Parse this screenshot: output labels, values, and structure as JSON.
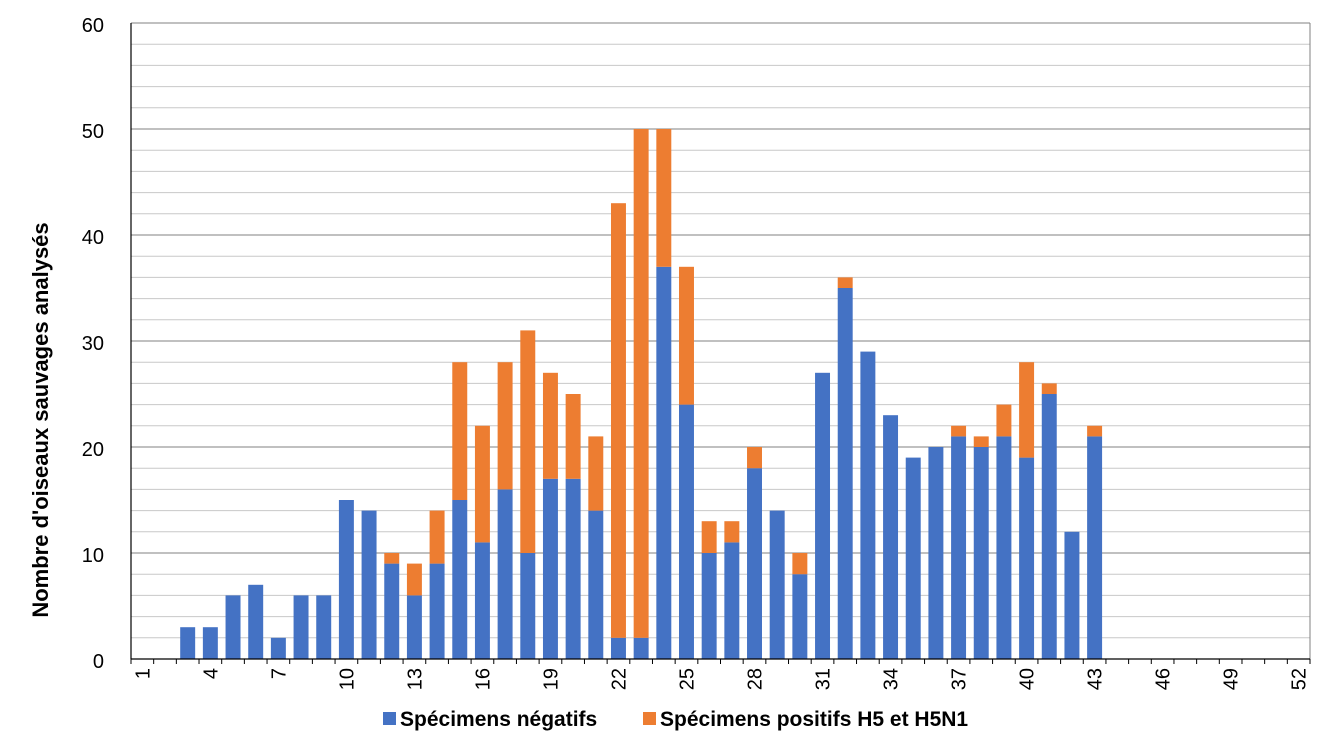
{
  "chart_data": {
    "type": "bar",
    "stacked": true,
    "ylabel": "Nombre d'oiseaux sauvages analysés",
    "xlabel": "",
    "ylim": [
      0,
      60
    ],
    "yticks": [
      0,
      10,
      20,
      30,
      40,
      50,
      60
    ],
    "categories": [
      1,
      2,
      3,
      4,
      5,
      6,
      7,
      8,
      9,
      10,
      11,
      12,
      13,
      14,
      15,
      16,
      17,
      18,
      19,
      20,
      21,
      22,
      23,
      24,
      25,
      26,
      27,
      28,
      29,
      30,
      31,
      32,
      33,
      34,
      35,
      36,
      37,
      38,
      39,
      40,
      41,
      42,
      43,
      44,
      45,
      46,
      47,
      48,
      49,
      50,
      51,
      52
    ],
    "x_tick_labels": [
      "1",
      "4",
      "7",
      "10",
      "13",
      "16",
      "19",
      "22",
      "25",
      "28",
      "31",
      "34",
      "37",
      "40",
      "43",
      "46",
      "49",
      "52"
    ],
    "series": [
      {
        "name": "Spécimens négatifs",
        "color": "#4472C4",
        "values": [
          0,
          0,
          3,
          3,
          6,
          7,
          2,
          6,
          6,
          15,
          14,
          9,
          6,
          9,
          15,
          11,
          16,
          10,
          17,
          17,
          14,
          2,
          2,
          37,
          24,
          10,
          11,
          18,
          14,
          8,
          27,
          35,
          29,
          23,
          19,
          20,
          21,
          20,
          21,
          19,
          25,
          12,
          21,
          0,
          0,
          0,
          0,
          0,
          0,
          0,
          0,
          0
        ]
      },
      {
        "name": "Spécimens positifs H5 et H5N1",
        "color": "#ED7D31",
        "values": [
          0,
          0,
          0,
          0,
          0,
          0,
          0,
          0,
          0,
          0,
          0,
          1,
          3,
          5,
          13,
          11,
          12,
          21,
          10,
          8,
          7,
          41,
          48,
          13,
          13,
          3,
          2,
          2,
          0,
          2,
          0,
          1,
          0,
          0,
          0,
          0,
          1,
          1,
          3,
          9,
          1,
          0,
          1,
          0,
          0,
          0,
          0,
          0,
          0,
          0,
          0,
          0
        ]
      }
    ],
    "grid": {
      "major": true,
      "minor_step": 2
    },
    "legend_position": "bottom"
  }
}
